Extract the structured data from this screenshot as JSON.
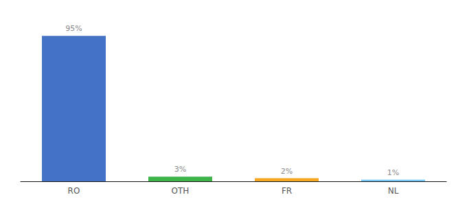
{
  "chart_data": {
    "type": "bar",
    "categories": [
      "RO",
      "OTH",
      "FR",
      "NL"
    ],
    "values": [
      95,
      3,
      2,
      1
    ],
    "value_labels": [
      "95%",
      "3%",
      "2%",
      "1%"
    ],
    "colors": [
      "#4472c4",
      "#3db34a",
      "#f5a623",
      "#6ec6f5"
    ],
    "ylim": [
      0,
      105
    ],
    "data_labels": true,
    "tick_labels": "x",
    "grid": false
  }
}
